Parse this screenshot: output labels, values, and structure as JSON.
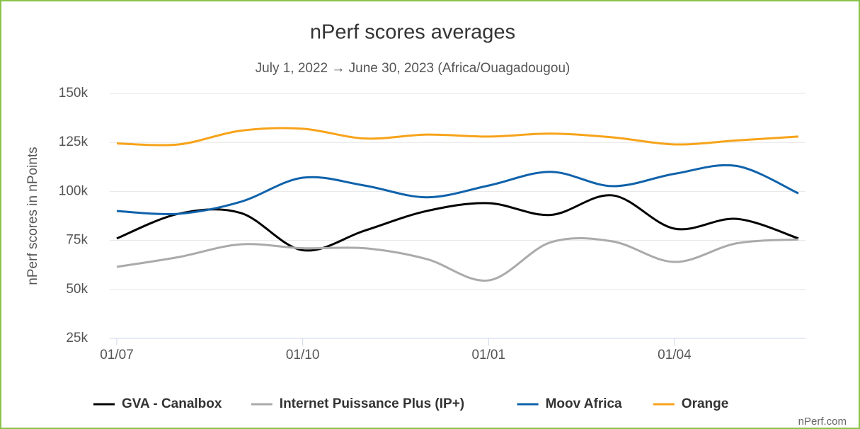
{
  "chart_data": {
    "type": "line",
    "title": "nPerf scores averages",
    "subtitle": "July 1, 2022 → June 30, 2023 (Africa/Ouagadougou)",
    "y_label": "nPerf scores in nPoints",
    "source": "nPerf.com",
    "categories": [
      "01/07",
      null,
      null,
      "01/10",
      null,
      null,
      "01/01",
      null,
      null,
      "01/04",
      null,
      null
    ],
    "ylim": [
      25000,
      150000
    ],
    "yticks": [
      {
        "value": 25000,
        "label": "25k"
      },
      {
        "value": 50000,
        "label": "50k"
      },
      {
        "value": 75000,
        "label": "75k"
      },
      {
        "value": 100000,
        "label": "100k"
      },
      {
        "value": 125000,
        "label": "125k"
      },
      {
        "value": 150000,
        "label": "150k"
      }
    ],
    "grid": true,
    "legend": "bottom",
    "series": [
      {
        "name": "GVA - Canalbox",
        "color": "#000000",
        "values": [
          76000,
          88600,
          89000,
          70000,
          80000,
          90000,
          94000,
          88000,
          98000,
          81000,
          86000,
          76000
        ]
      },
      {
        "name": "Internet Puissance Plus (IP+)",
        "color": "#aaaaaa",
        "values": [
          61500,
          66500,
          73000,
          71000,
          71000,
          65500,
          54600,
          74000,
          74500,
          64000,
          73500,
          75500
        ]
      },
      {
        "name": "Moov Africa",
        "color": "#0f62ab",
        "values": [
          90000,
          88600,
          94700,
          107000,
          103000,
          97000,
          103000,
          110000,
          102700,
          109000,
          113000,
          99000
        ]
      },
      {
        "name": "Orange",
        "color": "#f7a31a",
        "values": [
          124500,
          124000,
          131000,
          132000,
          127000,
          129000,
          128000,
          129500,
          127600,
          124000,
          126000,
          128000
        ]
      }
    ]
  }
}
